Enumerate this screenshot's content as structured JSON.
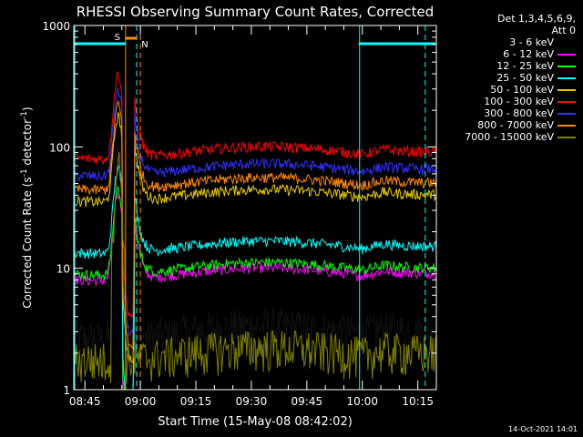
{
  "chart_data": {
    "type": "line",
    "title": "RHESSI Observing Summary Count Rates, Corrected",
    "xlabel": "Start Time (15-May-08 08:42:02)",
    "ylabel": "Corrected Count Rate (s-1 detector-1)",
    "ylabel_parts": {
      "pre": "Corrected Count Rate (s",
      "sup1": "-1",
      "mid": " detector",
      "sup2": "-1",
      "post": ")"
    },
    "yscale": "log",
    "ylim": [
      1,
      1000
    ],
    "y_ticks": [
      {
        "v": 1,
        "label": "1"
      },
      {
        "v": 10,
        "label": "10"
      },
      {
        "v": 100,
        "label": "100"
      },
      {
        "v": 1000,
        "label": "1000"
      }
    ],
    "xlim_minutes": [
      0,
      98
    ],
    "x_ticks": [
      {
        "m": 3,
        "label": "08:45"
      },
      {
        "m": 18,
        "label": "09:00"
      },
      {
        "m": 33,
        "label": "09:15"
      },
      {
        "m": 48,
        "label": "09:30"
      },
      {
        "m": 63,
        "label": "09:45"
      },
      {
        "m": 78,
        "label": "10:00"
      },
      {
        "m": 93,
        "label": "10:15"
      }
    ],
    "legend_header": [
      "Det 1,3,4,5,6,9,",
      "Att 0"
    ],
    "series": [
      {
        "name": "3 - 6 keV",
        "color": "#000000",
        "base": 3
      },
      {
        "name": "6 - 12 keV",
        "color": "#ff00ff",
        "base": 9
      },
      {
        "name": "12 - 25 keV",
        "color": "#00ff00",
        "base": 10
      },
      {
        "name": "25 - 50 keV",
        "color": "#00ffff",
        "base": 15
      },
      {
        "name": "50 - 100 keV",
        "color": "#e6cc00",
        "base": 40
      },
      {
        "name": "100 - 300 keV",
        "color": "#ff0000",
        "base": 90
      },
      {
        "name": "300 - 800 keV",
        "color": "#3030ff",
        "base": 65
      },
      {
        "name": "800 - 7000 keV",
        "color": "#ff8800",
        "base": 50
      },
      {
        "name": "7000 - 15000 keV",
        "color": "#808000",
        "base": 2
      }
    ],
    "flare_peak_minute": 12,
    "markers": {
      "s_label": "S",
      "n_label": "N",
      "orange_line_minute": 14,
      "cyan_dashed_minutes": [
        17,
        95
      ],
      "cyan_solid_minutes": [
        0,
        77
      ],
      "orange_dashed_minute": 18
    }
  },
  "timestamp": "14-Oct-2021 14:01",
  "colors": {
    "axis": "#ffffff",
    "background": "#000000",
    "cyan_bar": "#00ffff",
    "orange_bar": "#ff8800"
  }
}
